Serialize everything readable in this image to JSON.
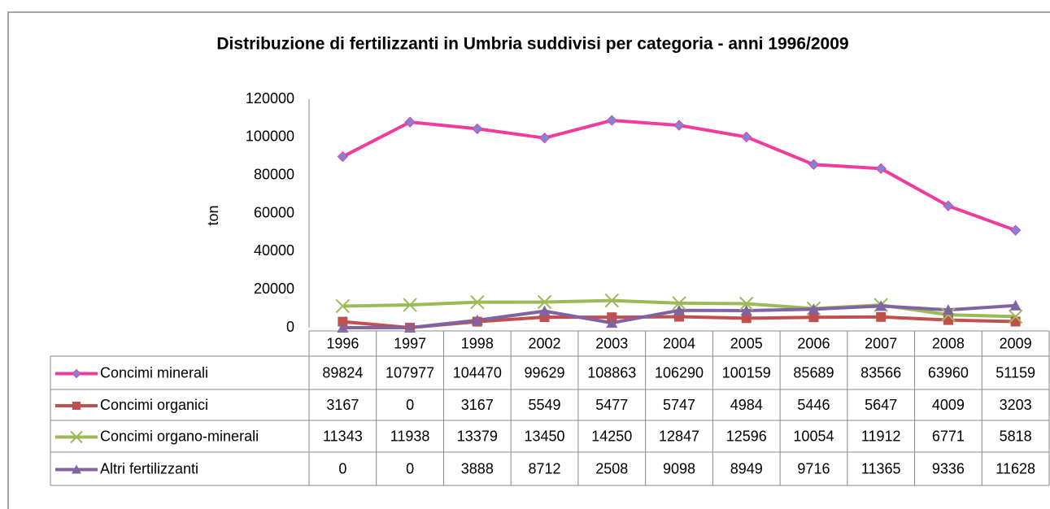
{
  "chart_data": {
    "type": "line",
    "title": "Distribuzione di fertilizzanti in Umbria suddivisi per categoria - anni 1996/2009",
    "ylabel": "ton",
    "categories": [
      "1996",
      "1997",
      "1998",
      "2002",
      "2003",
      "2004",
      "2005",
      "2006",
      "2007",
      "2008",
      "2009"
    ],
    "series": [
      {
        "name": "Concimi minerali",
        "color": "#f03c9c",
        "marker": "diamond",
        "values": [
          89824,
          107977,
          104470,
          99629,
          108863,
          106290,
          100159,
          85689,
          83566,
          63960,
          51159
        ]
      },
      {
        "name": "Concimi organici",
        "color": "#c0504d",
        "marker": "square",
        "values": [
          3167,
          0,
          3167,
          5549,
          5477,
          5747,
          4984,
          5446,
          5647,
          4009,
          3203
        ]
      },
      {
        "name": "Concimi organo-minerali",
        "color": "#9bbb59",
        "marker": "x",
        "values": [
          11343,
          11938,
          13379,
          13450,
          14250,
          12847,
          12596,
          10054,
          11912,
          6771,
          5818
        ]
      },
      {
        "name": "Altri fertilizzanti",
        "color": "#8064a2",
        "marker": "triangle",
        "values": [
          0,
          0,
          3888,
          8712,
          2508,
          9098,
          8949,
          9716,
          11365,
          9336,
          11628
        ]
      }
    ],
    "ylim": [
      0,
      120000
    ],
    "yticks": [
      0,
      20000,
      40000,
      60000,
      80000,
      100000,
      120000
    ],
    "grid": false,
    "data_table": true
  }
}
